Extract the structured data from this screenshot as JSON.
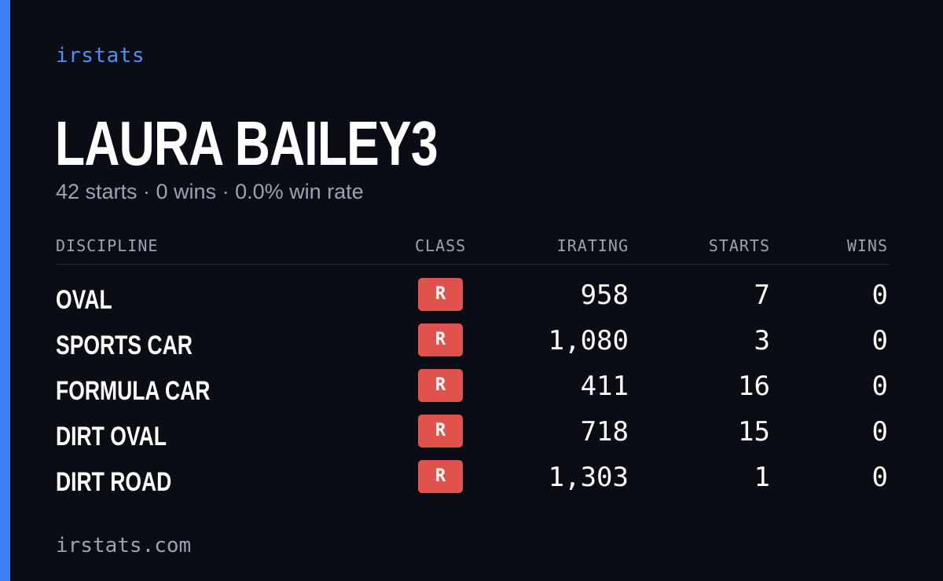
{
  "brand": "irstats",
  "driver_name": "LAURA BAILEY3",
  "summary": "42 starts · 0 wins · 0.0% win rate",
  "colors": {
    "accent": "#3b82f6",
    "background": "#0b0d14",
    "class_r": "#e0534d",
    "muted": "#9aa3b4"
  },
  "table": {
    "headers": {
      "discipline": "DISCIPLINE",
      "class": "CLASS",
      "irating": "IRATING",
      "starts": "STARTS",
      "wins": "WINS"
    },
    "rows": [
      {
        "discipline": "OVAL",
        "class": "R",
        "irating": "958",
        "starts": "7",
        "wins": "0"
      },
      {
        "discipline": "SPORTS CAR",
        "class": "R",
        "irating": "1,080",
        "starts": "3",
        "wins": "0"
      },
      {
        "discipline": "FORMULA CAR",
        "class": "R",
        "irating": "411",
        "starts": "16",
        "wins": "0"
      },
      {
        "discipline": "DIRT OVAL",
        "class": "R",
        "irating": "718",
        "starts": "15",
        "wins": "0"
      },
      {
        "discipline": "DIRT ROAD",
        "class": "R",
        "irating": "1,303",
        "starts": "1",
        "wins": "0"
      }
    ]
  },
  "footer": "irstats.com"
}
